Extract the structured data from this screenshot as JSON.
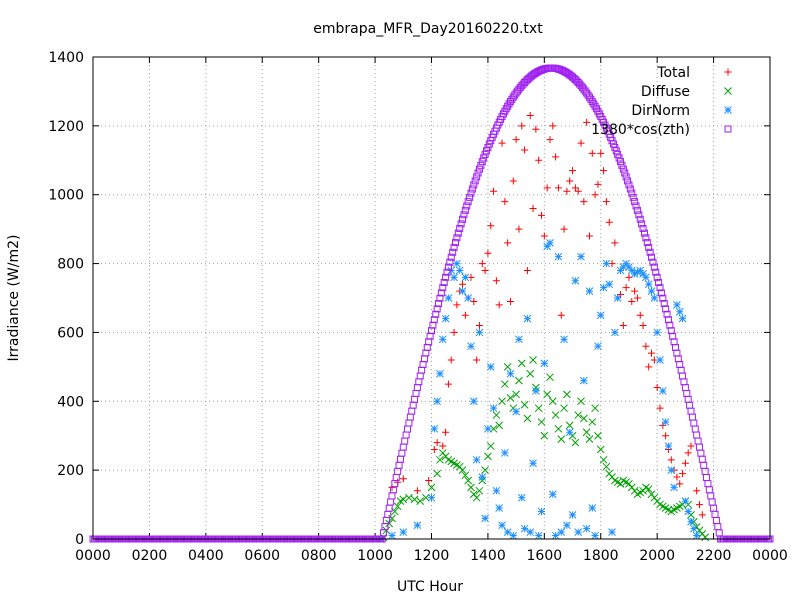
{
  "chart_data": {
    "type": "scatter",
    "title": "embrapa_MFR_Day20160220.txt",
    "xlabel": "UTC Hour",
    "ylabel": "Irradiance (W/m2)",
    "xlim": [
      0,
      24
    ],
    "ylim": [
      0,
      1400
    ],
    "x_ticks": [
      0,
      2,
      4,
      6,
      8,
      10,
      12,
      14,
      16,
      18,
      20,
      22,
      24
    ],
    "x_tick_labels": [
      "0000",
      "0200",
      "0400",
      "0600",
      "0800",
      "1000",
      "1200",
      "1400",
      "1600",
      "1800",
      "2000",
      "2200",
      "0000"
    ],
    "y_ticks": [
      0,
      200,
      400,
      600,
      800,
      1000,
      1200,
      1400
    ],
    "y_tick_labels": [
      "0",
      "200",
      "400",
      "600",
      "800",
      "1000",
      "1200",
      "1400"
    ],
    "grid": true,
    "legend_position": "top-right",
    "series": [
      {
        "name": "Total",
        "color": "#ff0000",
        "marker": "plus",
        "points": [
          [
            10.6,
            150
          ],
          [
            10.8,
            165
          ],
          [
            11.0,
            175
          ],
          [
            11.5,
            140
          ],
          [
            11.9,
            170
          ],
          [
            12.1,
            260
          ],
          [
            12.2,
            280
          ],
          [
            12.4,
            270
          ],
          [
            12.5,
            310
          ],
          [
            12.6,
            450
          ],
          [
            12.7,
            520
          ],
          [
            12.8,
            600
          ],
          [
            12.9,
            680
          ],
          [
            13.0,
            720
          ],
          [
            13.1,
            740
          ],
          [
            13.2,
            650
          ],
          [
            13.3,
            700
          ],
          [
            13.4,
            760
          ],
          [
            13.5,
            690
          ],
          [
            13.6,
            520
          ],
          [
            13.7,
            620
          ],
          [
            13.8,
            800
          ],
          [
            13.9,
            780
          ],
          [
            14.0,
            830
          ],
          [
            14.1,
            910
          ],
          [
            14.2,
            1010
          ],
          [
            14.3,
            750
          ],
          [
            14.4,
            680
          ],
          [
            14.5,
            1150
          ],
          [
            14.6,
            980
          ],
          [
            14.7,
            860
          ],
          [
            14.8,
            690
          ],
          [
            14.9,
            1040
          ],
          [
            15.0,
            1160
          ],
          [
            15.1,
            900
          ],
          [
            15.2,
            1200
          ],
          [
            15.3,
            1130
          ],
          [
            15.4,
            780
          ],
          [
            15.5,
            1230
          ],
          [
            15.6,
            960
          ],
          [
            15.7,
            1190
          ],
          [
            15.8,
            1100
          ],
          [
            15.9,
            940
          ],
          [
            16.0,
            880
          ],
          [
            16.1,
            1020
          ],
          [
            16.2,
            1160
          ],
          [
            16.3,
            1200
          ],
          [
            16.4,
            1110
          ],
          [
            16.5,
            1020
          ],
          [
            16.6,
            650
          ],
          [
            16.7,
            900
          ],
          [
            16.8,
            1010
          ],
          [
            16.9,
            1040
          ],
          [
            17.0,
            1070
          ],
          [
            17.1,
            1020
          ],
          [
            17.2,
            1010
          ],
          [
            17.3,
            1150
          ],
          [
            17.4,
            980
          ],
          [
            17.5,
            1210
          ],
          [
            17.6,
            880
          ],
          [
            17.7,
            1120
          ],
          [
            17.8,
            1000
          ],
          [
            17.9,
            1030
          ],
          [
            18.0,
            1120
          ],
          [
            18.1,
            1070
          ],
          [
            18.2,
            980
          ],
          [
            18.3,
            920
          ],
          [
            18.4,
            800
          ],
          [
            18.5,
            860
          ],
          [
            18.6,
            700
          ],
          [
            18.7,
            710
          ],
          [
            18.8,
            620
          ],
          [
            18.9,
            730
          ],
          [
            19.0,
            760
          ],
          [
            19.1,
            690
          ],
          [
            19.2,
            720
          ],
          [
            19.3,
            700
          ],
          [
            19.4,
            650
          ],
          [
            19.5,
            620
          ],
          [
            19.6,
            560
          ],
          [
            19.7,
            500
          ],
          [
            19.8,
            540
          ],
          [
            19.9,
            520
          ],
          [
            20.0,
            440
          ],
          [
            20.1,
            380
          ],
          [
            20.2,
            330
          ],
          [
            20.3,
            300
          ],
          [
            20.4,
            260
          ],
          [
            20.5,
            230
          ],
          [
            20.6,
            200
          ],
          [
            20.7,
            180
          ],
          [
            20.8,
            160
          ],
          [
            20.9,
            190
          ],
          [
            21.0,
            220
          ],
          [
            21.1,
            250
          ],
          [
            21.2,
            270
          ],
          [
            21.4,
            140
          ],
          [
            21.5,
            100
          ],
          [
            21.6,
            70
          ]
        ]
      },
      {
        "name": "Diffuse",
        "color": "#00a000",
        "marker": "cross",
        "points": [
          [
            10.3,
            5
          ],
          [
            10.4,
            25
          ],
          [
            10.5,
            45
          ],
          [
            10.6,
            60
          ],
          [
            10.7,
            80
          ],
          [
            10.8,
            95
          ],
          [
            10.9,
            110
          ],
          [
            11.0,
            115
          ],
          [
            11.2,
            120
          ],
          [
            11.4,
            115
          ],
          [
            11.6,
            110
          ],
          [
            11.8,
            120
          ],
          [
            12.0,
            150
          ],
          [
            12.2,
            190
          ],
          [
            12.3,
            230
          ],
          [
            12.4,
            250
          ],
          [
            12.5,
            240
          ],
          [
            12.6,
            230
          ],
          [
            12.7,
            225
          ],
          [
            12.8,
            220
          ],
          [
            12.9,
            215
          ],
          [
            13.0,
            210
          ],
          [
            13.1,
            200
          ],
          [
            13.2,
            185
          ],
          [
            13.3,
            170
          ],
          [
            13.4,
            150
          ],
          [
            13.5,
            130
          ],
          [
            13.6,
            120
          ],
          [
            13.7,
            140
          ],
          [
            13.8,
            170
          ],
          [
            13.9,
            200
          ],
          [
            14.0,
            240
          ],
          [
            14.1,
            270
          ],
          [
            14.2,
            320
          ],
          [
            14.3,
            360
          ],
          [
            14.4,
            330
          ],
          [
            14.5,
            400
          ],
          [
            14.6,
            450
          ],
          [
            14.7,
            500
          ],
          [
            14.8,
            410
          ],
          [
            14.9,
            380
          ],
          [
            15.0,
            420
          ],
          [
            15.1,
            460
          ],
          [
            15.2,
            510
          ],
          [
            15.3,
            390
          ],
          [
            15.4,
            350
          ],
          [
            15.5,
            480
          ],
          [
            15.6,
            520
          ],
          [
            15.7,
            440
          ],
          [
            15.8,
            380
          ],
          [
            15.9,
            340
          ],
          [
            16.0,
            300
          ],
          [
            16.1,
            420
          ],
          [
            16.2,
            470
          ],
          [
            16.3,
            400
          ],
          [
            16.4,
            360
          ],
          [
            16.5,
            320
          ],
          [
            16.6,
            290
          ],
          [
            16.7,
            380
          ],
          [
            16.8,
            420
          ],
          [
            16.9,
            330
          ],
          [
            17.0,
            300
          ],
          [
            17.1,
            280
          ],
          [
            17.2,
            360
          ],
          [
            17.3,
            400
          ],
          [
            17.4,
            350
          ],
          [
            17.5,
            310
          ],
          [
            17.6,
            290
          ],
          [
            17.7,
            340
          ],
          [
            17.8,
            380
          ],
          [
            17.9,
            300
          ],
          [
            18.0,
            260
          ],
          [
            18.1,
            230
          ],
          [
            18.2,
            210
          ],
          [
            18.3,
            190
          ],
          [
            18.4,
            180
          ],
          [
            18.5,
            170
          ],
          [
            18.6,
            165
          ],
          [
            18.7,
            160
          ],
          [
            18.8,
            170
          ],
          [
            18.9,
            165
          ],
          [
            19.0,
            160
          ],
          [
            19.1,
            150
          ],
          [
            19.2,
            140
          ],
          [
            19.3,
            130
          ],
          [
            19.4,
            135
          ],
          [
            19.5,
            140
          ],
          [
            19.6,
            150
          ],
          [
            19.7,
            145
          ],
          [
            19.8,
            130
          ],
          [
            19.9,
            120
          ],
          [
            20.0,
            110
          ],
          [
            20.1,
            100
          ],
          [
            20.2,
            95
          ],
          [
            20.3,
            90
          ],
          [
            20.4,
            85
          ],
          [
            20.5,
            80
          ],
          [
            20.6,
            85
          ],
          [
            20.7,
            90
          ],
          [
            20.8,
            95
          ],
          [
            20.9,
            100
          ],
          [
            21.0,
            110
          ],
          [
            21.1,
            100
          ],
          [
            21.2,
            70
          ],
          [
            21.3,
            50
          ],
          [
            21.4,
            35
          ],
          [
            21.5,
            25
          ],
          [
            21.6,
            15
          ],
          [
            21.7,
            5
          ]
        ]
      },
      {
        "name": "DirNorm",
        "color": "#1e90ff",
        "marker": "star",
        "points": [
          [
            10.2,
            0
          ],
          [
            10.6,
            10
          ],
          [
            11.0,
            20
          ],
          [
            11.5,
            40
          ],
          [
            12.0,
            120
          ],
          [
            12.1,
            320
          ],
          [
            12.2,
            400
          ],
          [
            12.3,
            480
          ],
          [
            12.4,
            580
          ],
          [
            12.5,
            640
          ],
          [
            12.6,
            700
          ],
          [
            12.7,
            780
          ],
          [
            12.8,
            760
          ],
          [
            12.9,
            800
          ],
          [
            13.0,
            780
          ],
          [
            13.1,
            720
          ],
          [
            13.2,
            760
          ],
          [
            13.3,
            700
          ],
          [
            13.4,
            560
          ],
          [
            13.5,
            400
          ],
          [
            13.6,
            230
          ],
          [
            13.7,
            600
          ],
          [
            13.8,
            180
          ],
          [
            13.9,
            60
          ],
          [
            14.0,
            320
          ],
          [
            14.1,
            500
          ],
          [
            14.2,
            380
          ],
          [
            14.3,
            140
          ],
          [
            14.4,
            90
          ],
          [
            14.5,
            40
          ],
          [
            14.6,
            250
          ],
          [
            14.7,
            20
          ],
          [
            14.8,
            480
          ],
          [
            14.9,
            10
          ],
          [
            15.0,
            370
          ],
          [
            15.1,
            580
          ],
          [
            15.2,
            120
          ],
          [
            15.3,
            30
          ],
          [
            15.4,
            640
          ],
          [
            15.5,
            20
          ],
          [
            15.6,
            220
          ],
          [
            15.7,
            430
          ],
          [
            15.8,
            10
          ],
          [
            15.9,
            80
          ],
          [
            16.0,
            510
          ],
          [
            16.1,
            850
          ],
          [
            16.2,
            860
          ],
          [
            16.3,
            130
          ],
          [
            16.4,
            10
          ],
          [
            16.5,
            820
          ],
          [
            16.6,
            20
          ],
          [
            16.7,
            580
          ],
          [
            16.8,
            40
          ],
          [
            16.9,
            310
          ],
          [
            17.0,
            70
          ],
          [
            17.1,
            750
          ],
          [
            17.2,
            20
          ],
          [
            17.3,
            820
          ],
          [
            17.4,
            460
          ],
          [
            17.5,
            30
          ],
          [
            17.6,
            720
          ],
          [
            17.7,
            90
          ],
          [
            17.8,
            10
          ],
          [
            17.9,
            560
          ],
          [
            18.0,
            650
          ],
          [
            18.1,
            730
          ],
          [
            18.2,
            800
          ],
          [
            18.3,
            740
          ],
          [
            18.4,
            20
          ],
          [
            18.5,
            600
          ],
          [
            18.6,
            700
          ],
          [
            18.7,
            780
          ],
          [
            18.8,
            790
          ],
          [
            18.9,
            800
          ],
          [
            19.0,
            790
          ],
          [
            19.1,
            780
          ],
          [
            19.2,
            770
          ],
          [
            19.3,
            775
          ],
          [
            19.4,
            780
          ],
          [
            19.5,
            770
          ],
          [
            19.6,
            760
          ],
          [
            19.7,
            740
          ],
          [
            19.8,
            720
          ],
          [
            19.9,
            700
          ],
          [
            20.0,
            600
          ],
          [
            20.1,
            520
          ],
          [
            20.2,
            430
          ],
          [
            20.3,
            340
          ],
          [
            20.4,
            270
          ],
          [
            20.5,
            200
          ],
          [
            20.6,
            150
          ],
          [
            20.7,
            680
          ],
          [
            20.8,
            660
          ],
          [
            20.9,
            640
          ],
          [
            21.0,
            110
          ],
          [
            21.1,
            80
          ],
          [
            21.2,
            50
          ],
          [
            21.3,
            30
          ],
          [
            21.4,
            10
          ]
        ]
      },
      {
        "name": "1380*cos(zth)",
        "color": "#a020f0",
        "marker": "square",
        "function": {
          "amplitude": 1368,
          "peak_hour": 16.25,
          "sunrise_hour": 10.25,
          "sunset_hour": 22.25,
          "step_hours": 0.05
        }
      }
    ]
  }
}
